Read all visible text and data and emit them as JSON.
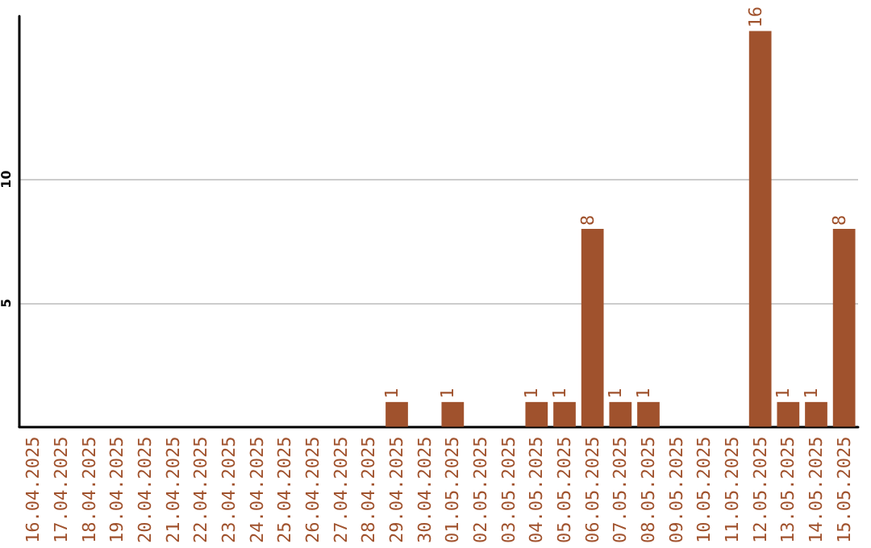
{
  "chart_data": {
    "type": "bar",
    "categories": [
      "16.04.2025",
      "17.04.2025",
      "18.04.2025",
      "19.04.2025",
      "20.04.2025",
      "21.04.2025",
      "22.04.2025",
      "23.04.2025",
      "24.04.2025",
      "25.04.2025",
      "26.04.2025",
      "27.04.2025",
      "28.04.2025",
      "29.04.2025",
      "30.04.2025",
      "01.05.2025",
      "02.05.2025",
      "03.05.2025",
      "04.05.2025",
      "05.05.2025",
      "06.05.2025",
      "07.05.2025",
      "08.05.2025",
      "09.05.2025",
      "10.05.2025",
      "11.05.2025",
      "12.05.2025",
      "13.05.2025",
      "14.05.2025",
      "15.05.2025"
    ],
    "values": [
      0,
      0,
      0,
      0,
      0,
      0,
      0,
      0,
      0,
      0,
      0,
      0,
      0,
      1,
      0,
      1,
      0,
      0,
      1,
      1,
      8,
      1,
      1,
      0,
      0,
      0,
      16,
      1,
      1,
      8
    ],
    "value_labels": [
      null,
      null,
      null,
      null,
      null,
      null,
      null,
      null,
      null,
      null,
      null,
      null,
      null,
      "1",
      null,
      "1",
      null,
      null,
      "1",
      "1",
      "8",
      "1",
      "1",
      null,
      null,
      null,
      "16",
      "1",
      "1",
      "8"
    ],
    "color": "#a0522d",
    "ylim": [
      0,
      16.6
    ],
    "yticks": [
      5,
      10
    ],
    "grid": "y"
  }
}
